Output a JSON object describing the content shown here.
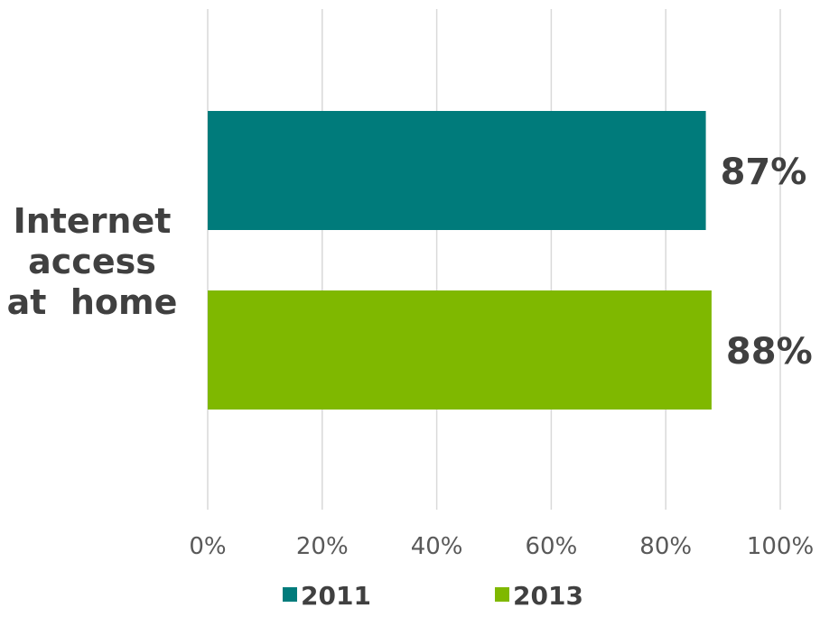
{
  "chart_data": {
    "type": "bar",
    "orientation": "horizontal",
    "categories": [
      "Internet access at home"
    ],
    "category_label_lines": [
      "Internet",
      "access",
      "at  home"
    ],
    "series": [
      {
        "name": "2011",
        "values": [
          87
        ],
        "color": "#007b7b",
        "label": "87%"
      },
      {
        "name": "2013",
        "values": [
          88
        ],
        "color": "#7fb800",
        "label": "88%"
      }
    ],
    "xlim": [
      0,
      100
    ],
    "x_ticks": [
      0,
      20,
      40,
      60,
      80,
      100
    ],
    "x_tick_labels": [
      "0%",
      "20%",
      "40%",
      "60%",
      "80%",
      "100%"
    ],
    "grid": true,
    "legend_position": "bottom",
    "title": "",
    "xlabel": "",
    "ylabel": ""
  }
}
